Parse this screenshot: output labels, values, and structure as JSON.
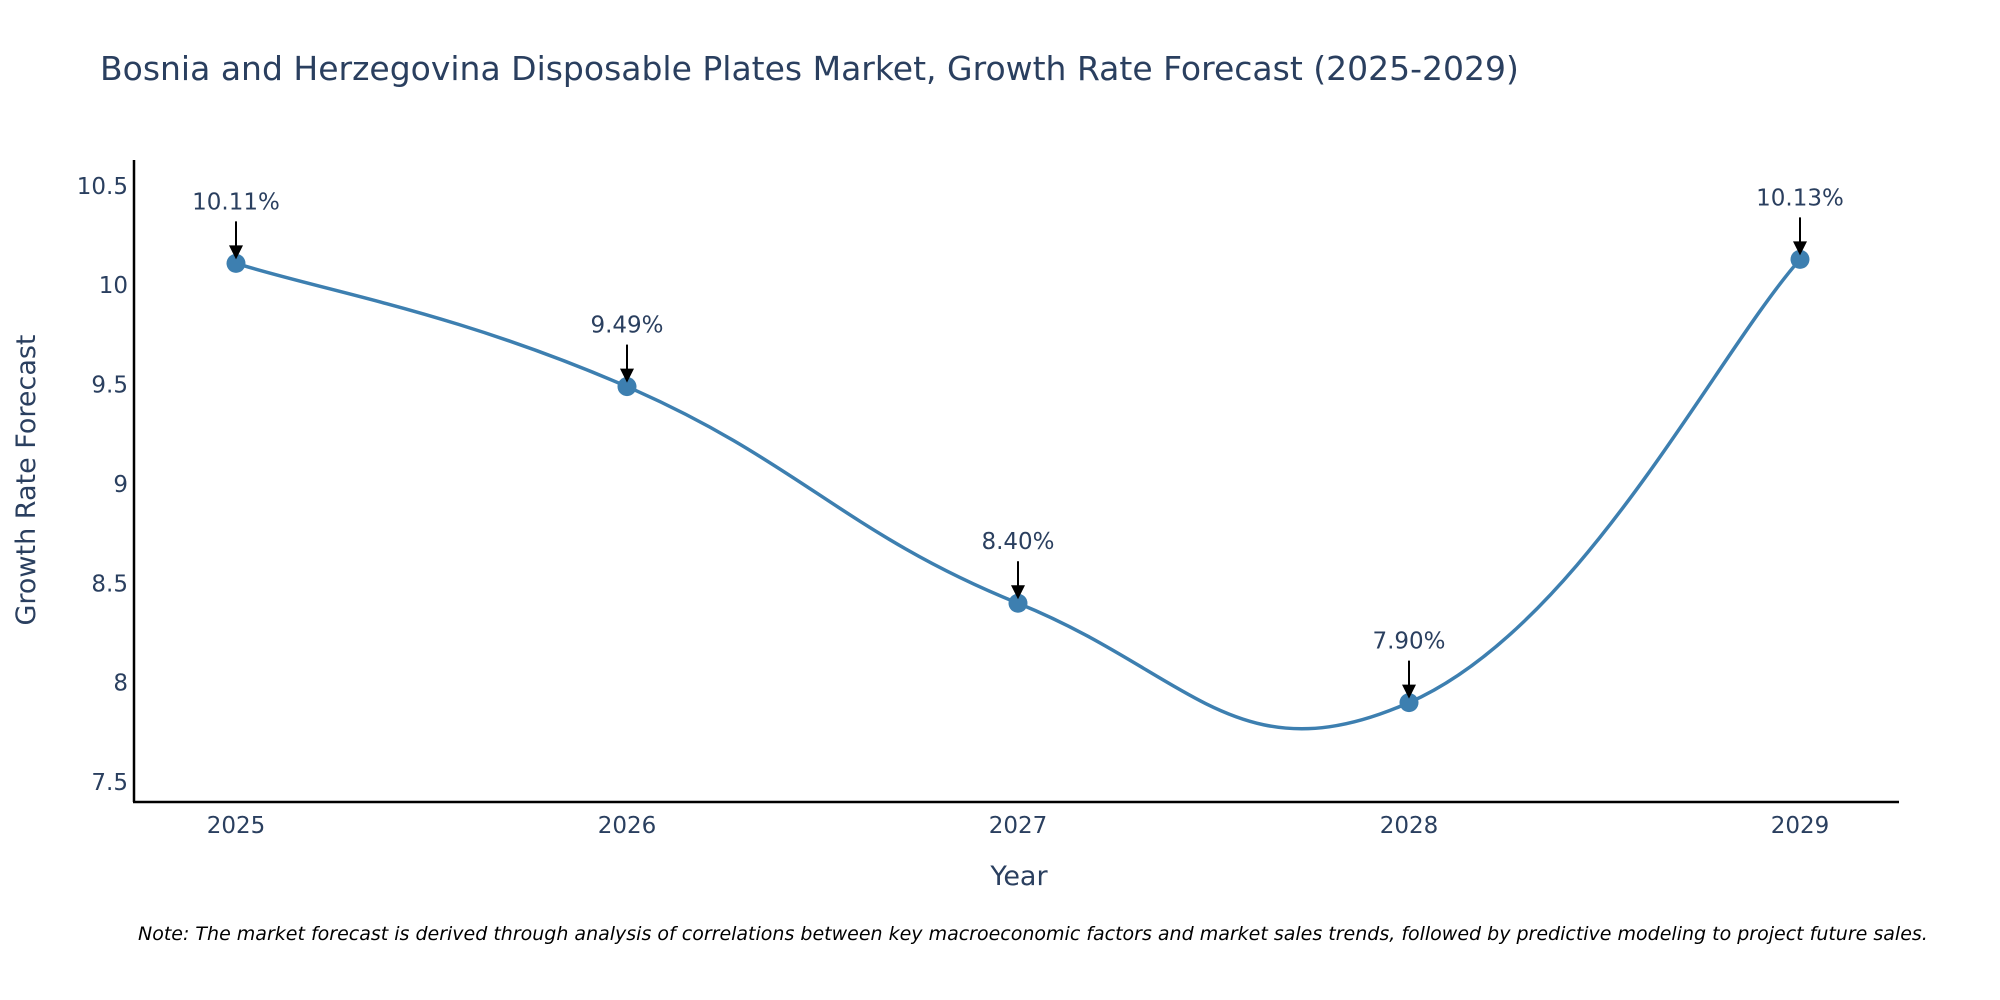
{
  "chart_data": {
    "type": "line",
    "title": "Bosnia and Herzegovina Disposable Plates Market, Growth Rate Forecast (2025-2029)",
    "xlabel": "Year",
    "ylabel": "Growth Rate Forecast",
    "categories": [
      "2025",
      "2026",
      "2027",
      "2028",
      "2029"
    ],
    "series": [
      {
        "name": "Growth Rate Forecast",
        "values": [
          10.11,
          9.49,
          8.4,
          7.9,
          10.13
        ]
      }
    ],
    "data_labels": [
      "10.11%",
      "9.49%",
      "8.40%",
      "7.90%",
      "10.13%"
    ],
    "ylim": [
      7.4,
      10.63
    ],
    "yticks": [
      7.5,
      8,
      8.5,
      9,
      9.5,
      10,
      10.5
    ],
    "ytick_labels": [
      "7.5",
      "8",
      "8.5",
      "9",
      "9.5",
      "10",
      "10.5"
    ],
    "grid": false,
    "line_color": "#3d7fb0",
    "note": "Note: The market forecast is derived through analysis of correlations between key macroeconomic factors and market sales trends, followed by predictive modeling to project future sales."
  }
}
